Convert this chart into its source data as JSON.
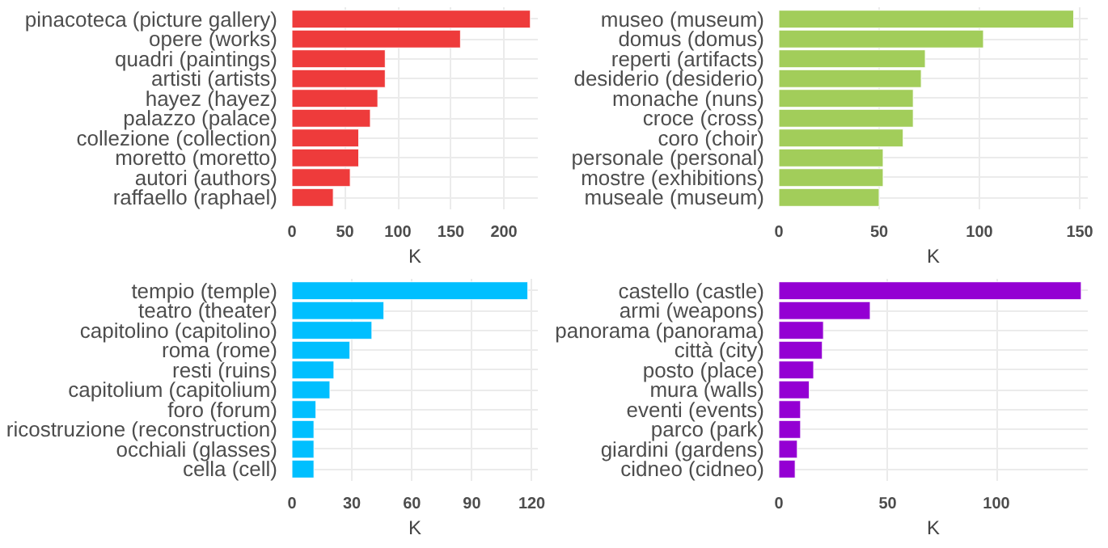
{
  "chart_data": [
    {
      "type": "bar",
      "orientation": "horizontal",
      "xlabel": "K",
      "categories": [
        "pinacoteca (picture gallery)",
        "opere (works)",
        "quadri (paintings)",
        "artisti (artists)",
        "hayez (hayez)",
        "palazzo (palace)",
        "collezione (collection)",
        "moretto (moretto)",
        "autori (authors)",
        "raffaello (raphael)"
      ],
      "values": [
        225,
        159,
        88,
        88,
        81,
        74,
        63,
        63,
        55,
        39
      ],
      "color": "#ee3b3b",
      "xlim": [
        0,
        232
      ],
      "xticks": [
        0,
        50,
        100,
        150,
        200
      ],
      "grid": true
    },
    {
      "type": "bar",
      "orientation": "horizontal",
      "xlabel": "K",
      "categories": [
        "museo (museum)",
        "domus (domus)",
        "reperti (artifacts)",
        "desiderio (desiderio)",
        "monache (nuns)",
        "croce (cross)",
        "coro (choir)",
        "personale (personal)",
        "mostre (exhibitions)",
        "museale (museum)"
      ],
      "values": [
        147,
        102,
        73,
        71,
        67,
        67,
        62,
        52,
        52,
        50
      ],
      "color": "#a2cd5a",
      "xlim": [
        0,
        154
      ],
      "xticks": [
        0,
        50,
        100,
        150
      ],
      "grid": true
    },
    {
      "type": "bar",
      "orientation": "horizontal",
      "xlabel": "K",
      "categories": [
        "tempio (temple)",
        "teatro (theater)",
        "capitolino (capitolino)",
        "roma (rome)",
        "resti (ruins)",
        "capitolium (capitolium)",
        "foro (forum)",
        "ricostruzione (reconstruction)",
        "occhiali (glasses)",
        "cella (cell)"
      ],
      "values": [
        118,
        46,
        40,
        29,
        21,
        19,
        12,
        11,
        11,
        11
      ],
      "color": "#00bfff",
      "xlim": [
        0,
        123
      ],
      "xticks": [
        0,
        30,
        60,
        90,
        120
      ],
      "grid": true
    },
    {
      "type": "bar",
      "orientation": "horizontal",
      "xlabel": "K",
      "categories": [
        "castello (castle)",
        "armi (weapons)",
        "panorama (panorama)",
        "città (city)",
        "posto (place)",
        "mura (walls)",
        "eventi (events)",
        "parco (park)",
        "giardini (gardens)",
        "cidneo (cidneo)"
      ],
      "values": [
        139,
        42,
        20.5,
        20,
        16,
        14,
        10,
        10,
        8.5,
        7.5
      ],
      "color": "#9400d3",
      "xlim": [
        0,
        142
      ],
      "xticks": [
        0,
        50,
        100
      ],
      "grid": true
    }
  ]
}
